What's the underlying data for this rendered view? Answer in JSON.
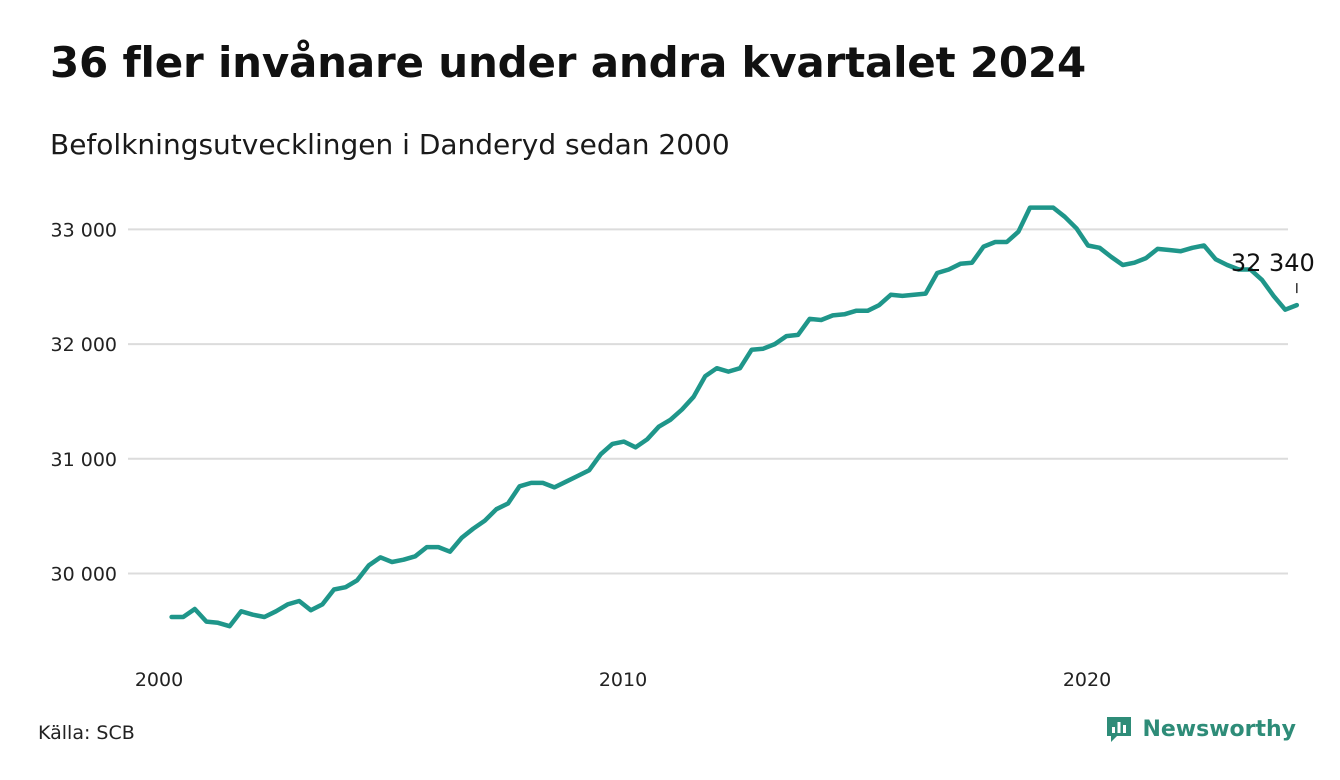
{
  "title": "36 fler invånare under andra kvartalet 2024",
  "subtitle": "Befolkningsutvecklingen i Danderyd sedan 2000",
  "source": "Källa: SCB",
  "brand": {
    "name": "Newsworthy",
    "icon": "bar-chart-speech-icon",
    "color": "#2e8c78"
  },
  "colors": {
    "line": "#1f968a",
    "grid": "#dcdcdc",
    "brand": "#2e8c78"
  },
  "chart_data": {
    "type": "line",
    "title": "36 fler invånare under andra kvartalet 2024",
    "subtitle": "Befolkningsutvecklingen i Danderyd sedan 2000",
    "xlabel": "",
    "ylabel": "",
    "xlim": [
      2000,
      2025
    ],
    "ylim": [
      29350,
      33300
    ],
    "grid": true,
    "x_ticks": [
      {
        "value": 2000,
        "label": "2000"
      },
      {
        "value": 2010,
        "label": "2010"
      },
      {
        "value": 2020,
        "label": "2020"
      }
    ],
    "y_ticks": [
      {
        "value": 30000,
        "label": "30 000"
      },
      {
        "value": 31000,
        "label": "31 000"
      },
      {
        "value": 32000,
        "label": "32 000"
      },
      {
        "value": 33000,
        "label": "33 000"
      }
    ],
    "end_label": "32 340",
    "series": [
      {
        "color": "#1f968a",
        "x": [
          2000.25,
          2000.5,
          2000.75,
          2001.0,
          2001.25,
          2001.5,
          2001.75,
          2002.0,
          2002.25,
          2002.5,
          2002.75,
          2003.0,
          2003.25,
          2003.5,
          2003.75,
          2004.0,
          2004.25,
          2004.5,
          2004.75,
          2005.0,
          2005.25,
          2005.5,
          2005.75,
          2006.0,
          2006.25,
          2006.5,
          2006.75,
          2007.0,
          2007.25,
          2007.5,
          2007.75,
          2008.0,
          2008.25,
          2008.5,
          2008.75,
          2009.0,
          2009.25,
          2009.5,
          2009.75,
          2010.0,
          2010.25,
          2010.5,
          2010.75,
          2011.0,
          2011.25,
          2011.5,
          2011.75,
          2012.0,
          2012.25,
          2012.5,
          2012.75,
          2013.0,
          2013.25,
          2013.5,
          2013.75,
          2014.0,
          2014.25,
          2014.5,
          2014.75,
          2015.0,
          2015.25,
          2015.5,
          2015.75,
          2016.0,
          2016.25,
          2016.5,
          2016.75,
          2017.0,
          2017.25,
          2017.5,
          2017.75,
          2018.0,
          2018.25,
          2018.5,
          2018.75,
          2019.0,
          2019.25,
          2019.5,
          2019.75,
          2020.0,
          2020.25,
          2020.5,
          2020.75,
          2021.0,
          2021.25,
          2021.5,
          2021.75,
          2022.0,
          2022.25,
          2022.5,
          2022.75,
          2023.0,
          2023.25,
          2023.5,
          2023.75,
          2024.0,
          2024.25,
          2024.5
        ],
        "values": [
          29620,
          29620,
          29690,
          29580,
          29570,
          29540,
          29670,
          29640,
          29620,
          29670,
          29730,
          29760,
          29680,
          29730,
          29860,
          29880,
          29940,
          30070,
          30140,
          30100,
          30120,
          30150,
          30230,
          30230,
          30190,
          30310,
          30390,
          30460,
          30560,
          30610,
          30760,
          30790,
          30790,
          30750,
          30800,
          30850,
          30900,
          31040,
          31130,
          31150,
          31100,
          31170,
          31280,
          31340,
          31430,
          31540,
          31720,
          31790,
          31760,
          31790,
          31950,
          31960,
          32000,
          32070,
          32080,
          32220,
          32210,
          32250,
          32260,
          32290,
          32290,
          32340,
          32430,
          32420,
          32430,
          32440,
          32620,
          32650,
          32700,
          32710,
          32850,
          32890,
          32890,
          32980,
          33190,
          33190,
          33190,
          33110,
          33010,
          32860,
          32840,
          32760,
          32690,
          32710,
          32750,
          32830,
          32820,
          32810,
          32840,
          32860,
          32740,
          32690,
          32650,
          32650,
          32560,
          32420,
          32300,
          32340
        ]
      }
    ]
  }
}
